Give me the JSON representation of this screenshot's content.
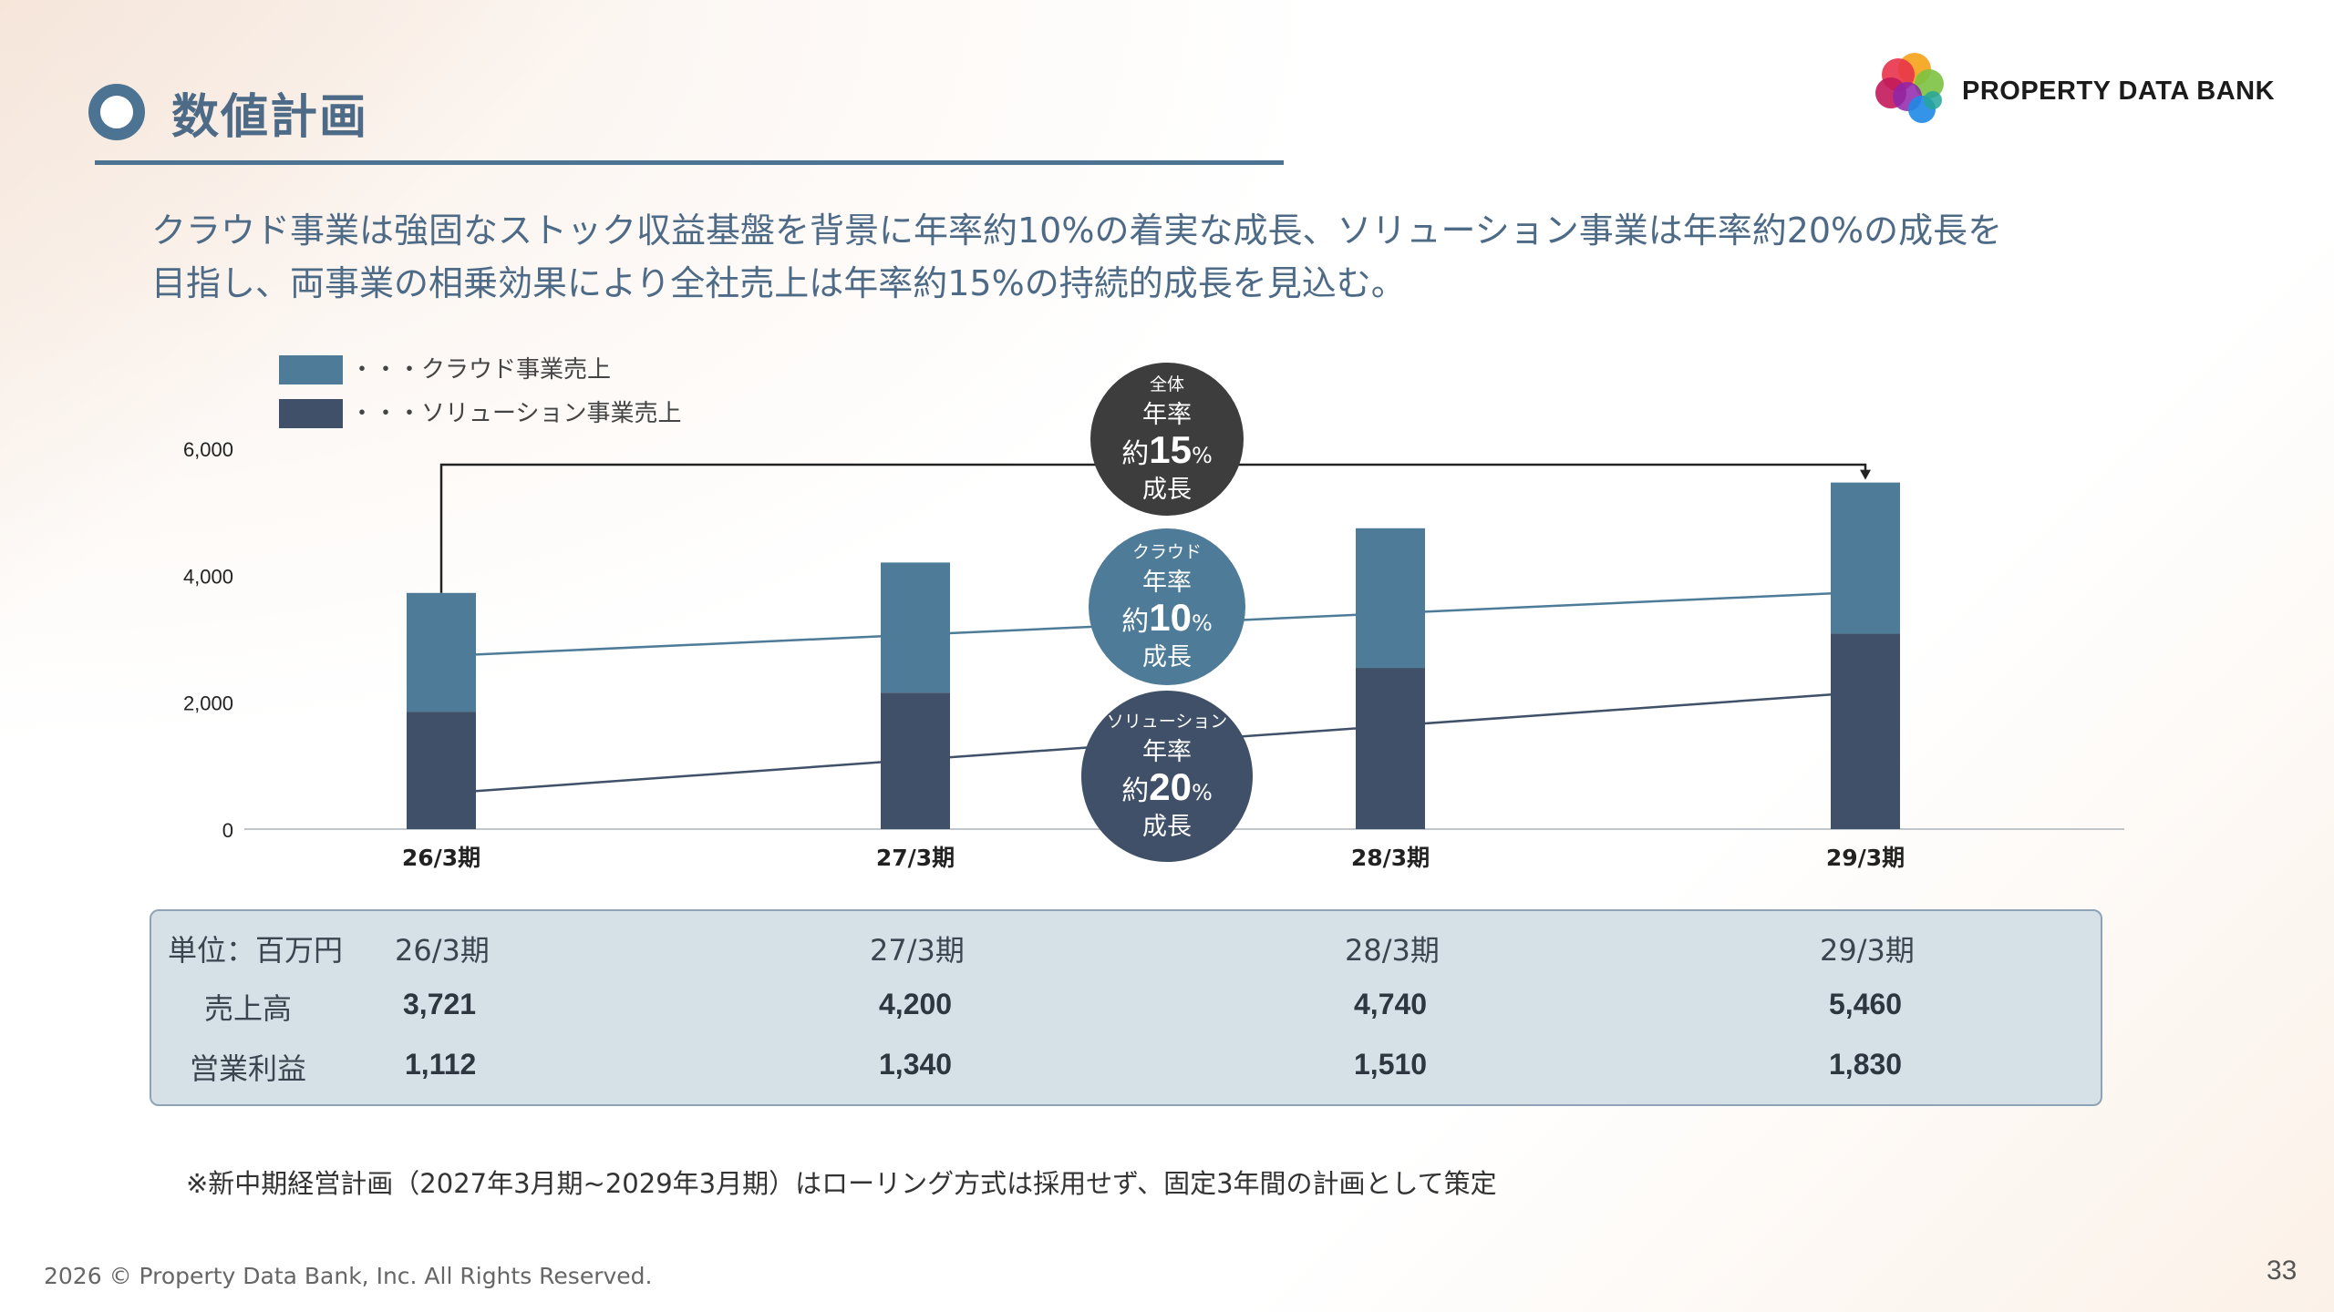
{
  "header": {
    "title": "数値計画",
    "brand": "PROPERTY DATA BANK"
  },
  "lead": {
    "line1": "クラウド事業は強固なストック収益基盤を背景に年率約10%の着実な成長、ソリューション事業は年率約20%の成長を",
    "line2": "目指し、両事業の相乗効果により全社売上は年率約15%の持続的成長を見込む。"
  },
  "chart_data": {
    "type": "bar",
    "stacked": true,
    "categories": [
      "26/3期",
      "27/3期",
      "28/3期",
      "29/3期"
    ],
    "series": [
      {
        "name": "・・・ソリューション事業売上",
        "values": [
          1850,
          2150,
          2540,
          3080
        ],
        "color": "#3f5068"
      },
      {
        "name": "・・・クラウド事業売上",
        "values": [
          1871,
          2050,
          2200,
          2380
        ],
        "color": "#4d7b98"
      }
    ],
    "trend_lines": [
      {
        "name": "cloud-trend",
        "values": [
          2750,
          3050,
          3380,
          3720
        ],
        "color": "#4d7b98"
      },
      {
        "name": "solution-trend",
        "values": [
          600,
          1080,
          1600,
          2130
        ],
        "color": "#3f5068"
      }
    ],
    "yticks": [
      "0",
      "2,000",
      "4,000",
      "6,000"
    ],
    "ylim": [
      0,
      6000
    ],
    "legend_position": "top-left",
    "badges": [
      {
        "small": "全体",
        "line1": "年率",
        "prefix": "約",
        "big": "15",
        "pct": "%",
        "line3": "成長",
        "color": "#3d3d3d"
      },
      {
        "small": "クラウド",
        "line1": "年率",
        "prefix": "約",
        "big": "10",
        "pct": "%",
        "line3": "成長",
        "color": "#4d7b98"
      },
      {
        "small": "ソリューション",
        "line1": "年率",
        "prefix": "約",
        "big": "20",
        "pct": "%",
        "line3": "成長",
        "color": "#3f5068"
      }
    ]
  },
  "table": {
    "unit_label": "単位：百万円",
    "headers": [
      "26/3期",
      "27/3期",
      "28/3期",
      "29/3期"
    ],
    "rows": [
      {
        "label": "売上高",
        "values": [
          "3,721",
          "4,200",
          "4,740",
          "5,460"
        ]
      },
      {
        "label": "営業利益",
        "values": [
          "1,112",
          "1,340",
          "1,510",
          "1,830"
        ]
      }
    ]
  },
  "footnote": "※新中期経営計画（2027年3月期~2029年3月期）はローリング方式は採用せず、固定3年間の計画として策定",
  "footer": {
    "copyright": "2026 © Property Data Bank, Inc. All Rights Reserved.",
    "page": "33"
  }
}
